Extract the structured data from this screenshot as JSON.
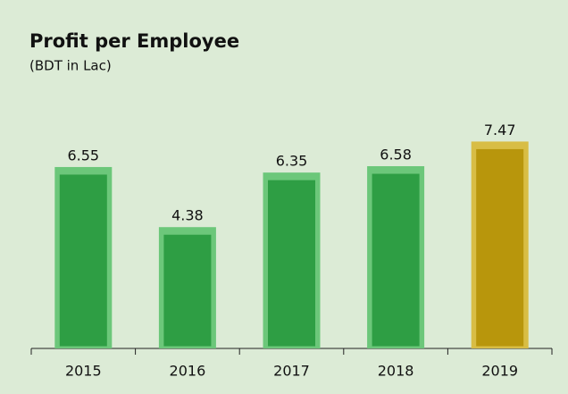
{
  "chart_data": {
    "type": "bar",
    "title": "Profit per Employee",
    "subtitle": "(BDT in Lac)",
    "categories": [
      "2015",
      "2016",
      "2017",
      "2018",
      "2019"
    ],
    "values": [
      6.55,
      4.38,
      6.35,
      6.58,
      7.47
    ],
    "colors": [
      "#2e9e44",
      "#2e9e44",
      "#2e9e44",
      "#2e9e44",
      "#b8960c"
    ],
    "ylim": [
      0,
      8
    ]
  }
}
